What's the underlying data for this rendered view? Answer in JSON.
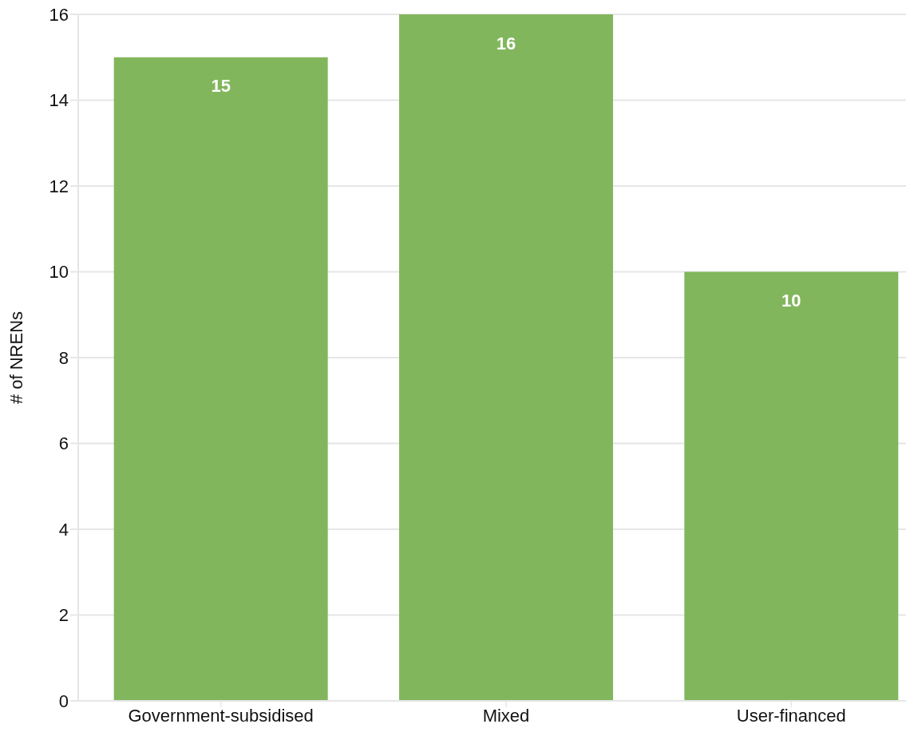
{
  "chart_data": {
    "type": "bar",
    "ylabel": "# of NRENs",
    "categories": [
      "Government-subsidised",
      "Mixed",
      "User-financed"
    ],
    "values": [
      15,
      16,
      10
    ],
    "color": "#82b65c",
    "ylim": [
      0,
      16
    ],
    "yticks": [
      0,
      2,
      4,
      6,
      8,
      10,
      12,
      14,
      16
    ],
    "grid": "y",
    "data_labels": true
  }
}
